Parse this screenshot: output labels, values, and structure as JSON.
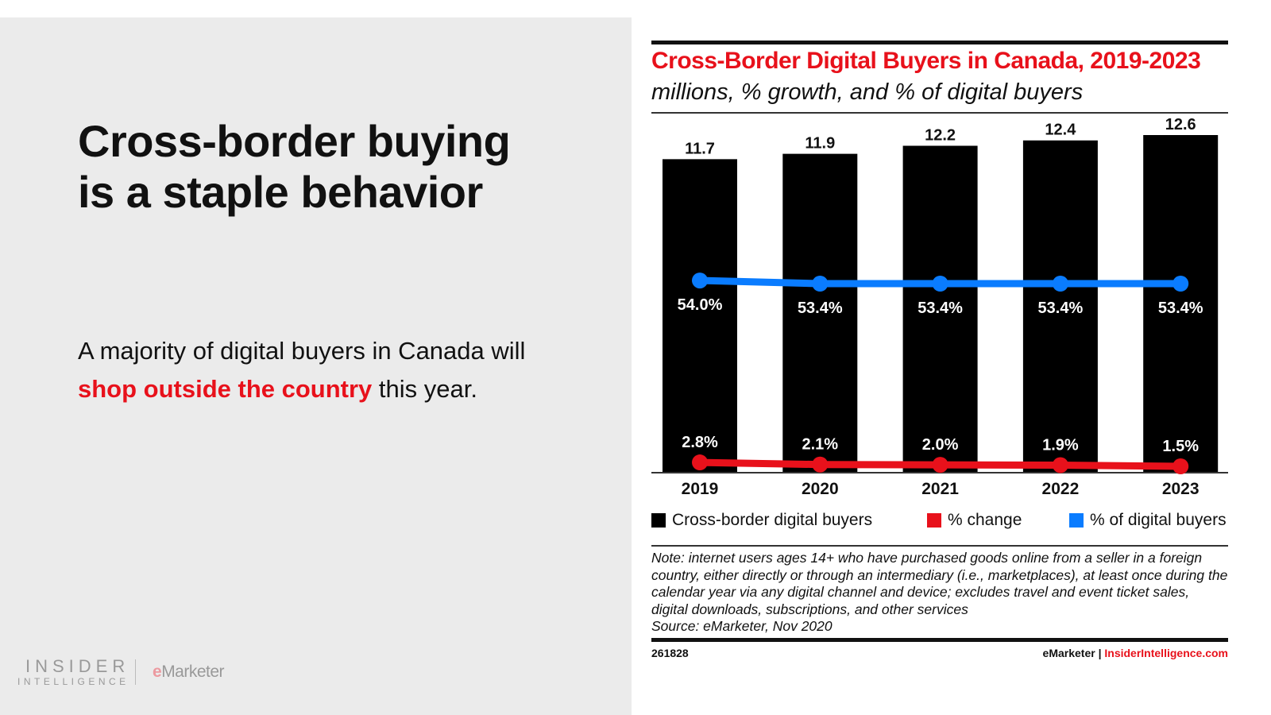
{
  "slide": {
    "headline_line1": "Cross-border buying",
    "headline_line2": "is a staple behavior",
    "body_prefix": "A majority of digital buyers in Canada will ",
    "body_highlight": "shop outside the country",
    "body_suffix": " this year.",
    "logo_ii_line1": "INSIDER",
    "logo_ii_line2": "INTELLIGENCE",
    "logo_em_e": "e",
    "logo_em_rest": "Marketer"
  },
  "chart_data": {
    "type": "bar",
    "title": "Cross-Border Digital Buyers in Canada, 2019-2023",
    "subtitle": "millions, % growth, and % of digital buyers",
    "categories": [
      "2019",
      "2020",
      "2021",
      "2022",
      "2023"
    ],
    "series": [
      {
        "name": "Cross-border digital buyers",
        "type": "bar",
        "values": [
          11.7,
          11.9,
          12.2,
          12.4,
          12.6
        ],
        "labels": [
          "11.7",
          "11.9",
          "12.2",
          "12.4",
          "12.6"
        ],
        "color": "#000000"
      },
      {
        "name": "% change",
        "type": "line",
        "values": [
          2.8,
          2.1,
          2.0,
          1.9,
          1.5
        ],
        "labels": [
          "2.8%",
          "2.1%",
          "2.0%",
          "1.9%",
          "1.5%"
        ],
        "color": "#e8111b"
      },
      {
        "name": "% of digital buyers",
        "type": "line",
        "values": [
          54.0,
          53.4,
          53.4,
          53.4,
          53.4
        ],
        "labels": [
          "54.0%",
          "53.4%",
          "53.4%",
          "53.4%",
          "53.4%"
        ],
        "color": "#0a7cff"
      }
    ],
    "ylim": [
      0,
      12.6
    ],
    "grid": false,
    "legend_position": "bottom",
    "note": "Note: internet users ages 14+ who have purchased goods online from a seller in a foreign country, either directly or through an intermediary (i.e., marketplaces), at least once during the calendar year via any digital channel and device; excludes travel and event ticket sales, digital downloads, subscriptions, and other services",
    "source": "Source: eMarketer, Nov 2020",
    "chart_id": "261828",
    "credit_left": "eMarketer",
    "credit_sep": " | ",
    "credit_right": "InsiderIntelligence.com"
  }
}
